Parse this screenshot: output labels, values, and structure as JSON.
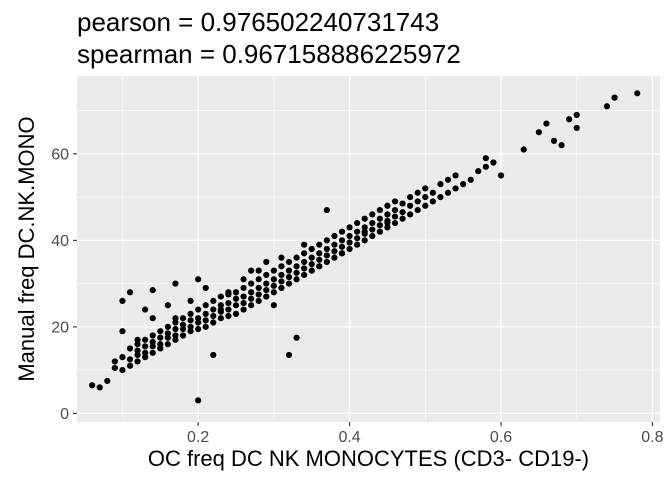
{
  "chart_data": {
    "type": "scatter",
    "title_lines": [
      "pearson = 0.976502240731743",
      " spearman = 0.967158886225972"
    ],
    "xlabel": "OC freq DC NK MONOCYTES (CD3- CD19-)",
    "ylabel": "Manual freq DC.NK.MONO",
    "xlim": [
      0.04,
      0.81
    ],
    "ylim": [
      -2,
      78
    ],
    "xticks": [
      0.2,
      0.4,
      0.6,
      0.8
    ],
    "xtick_labels": [
      "0.2",
      "0.4",
      "0.6",
      "0.8"
    ],
    "yticks": [
      0,
      20,
      40,
      60
    ],
    "ytick_labels": [
      "0",
      "20",
      "40",
      "60"
    ],
    "grid": true,
    "legend": "none",
    "panel_color": "#ebebeb",
    "gridline_color": "#ffffff",
    "point_color": "#000000",
    "x": [
      0.06,
      0.07,
      0.08,
      0.09,
      0.09,
      0.1,
      0.1,
      0.11,
      0.11,
      0.11,
      0.12,
      0.12,
      0.12,
      0.12,
      0.13,
      0.13,
      0.13,
      0.13,
      0.14,
      0.14,
      0.14,
      0.14,
      0.15,
      0.15,
      0.15,
      0.15,
      0.16,
      0.16,
      0.16,
      0.16,
      0.17,
      0.17,
      0.17,
      0.17,
      0.18,
      0.18,
      0.18,
      0.18,
      0.19,
      0.19,
      0.19,
      0.19,
      0.2,
      0.2,
      0.2,
      0.2,
      0.21,
      0.21,
      0.21,
      0.21,
      0.22,
      0.22,
      0.22,
      0.22,
      0.23,
      0.23,
      0.23,
      0.23,
      0.24,
      0.24,
      0.24,
      0.24,
      0.25,
      0.25,
      0.25,
      0.25,
      0.26,
      0.26,
      0.26,
      0.26,
      0.27,
      0.27,
      0.27,
      0.27,
      0.28,
      0.28,
      0.28,
      0.28,
      0.29,
      0.29,
      0.29,
      0.29,
      0.3,
      0.3,
      0.3,
      0.3,
      0.31,
      0.31,
      0.31,
      0.31,
      0.32,
      0.32,
      0.32,
      0.32,
      0.33,
      0.33,
      0.33,
      0.33,
      0.34,
      0.34,
      0.34,
      0.34,
      0.35,
      0.35,
      0.35,
      0.35,
      0.36,
      0.36,
      0.36,
      0.36,
      0.37,
      0.37,
      0.37,
      0.37,
      0.38,
      0.38,
      0.38,
      0.38,
      0.39,
      0.39,
      0.39,
      0.39,
      0.4,
      0.4,
      0.4,
      0.4,
      0.41,
      0.41,
      0.41,
      0.41,
      0.42,
      0.42,
      0.42,
      0.42,
      0.43,
      0.43,
      0.43,
      0.43,
      0.44,
      0.44,
      0.44,
      0.44,
      0.45,
      0.45,
      0.45,
      0.45,
      0.46,
      0.46,
      0.46,
      0.46,
      0.47,
      0.47,
      0.47,
      0.48,
      0.48,
      0.48,
      0.49,
      0.49,
      0.49,
      0.5,
      0.5,
      0.5,
      0.51,
      0.51,
      0.52,
      0.52,
      0.53,
      0.53,
      0.54,
      0.54,
      0.55,
      0.56,
      0.57,
      0.58,
      0.58,
      0.59,
      0.6,
      0.63,
      0.65,
      0.66,
      0.67,
      0.68,
      0.69,
      0.7,
      0.7,
      0.74,
      0.75,
      0.78,
      0.11,
      0.1,
      0.13,
      0.14,
      0.17,
      0.2,
      0.24,
      0.33,
      0.32,
      0.37,
      0.2,
      0.1,
      0.12,
      0.16,
      0.22,
      0.27,
      0.29,
      0.3,
      0.14,
      0.17,
      0.19,
      0.21,
      0.23,
      0.26,
      0.28,
      0.31,
      0.34,
      0.36,
      0.39,
      0.42,
      0.45
    ],
    "y": [
      6.5,
      6,
      7.5,
      10.5,
      12,
      10,
      13,
      11,
      12.5,
      15,
      12,
      13.5,
      14.5,
      16,
      13,
      14,
      15.5,
      17,
      14,
      15.5,
      16.5,
      18,
      15,
      16,
      17.5,
      19,
      16,
      17.5,
      18.5,
      20,
      17,
      18,
      19.5,
      21,
      18,
      19.5,
      20.5,
      22,
      19,
      20,
      21.5,
      23,
      19.5,
      21,
      22,
      24,
      20,
      21.5,
      23,
      25,
      21,
      22.5,
      24,
      26,
      22,
      23.5,
      25,
      27,
      22.5,
      24,
      25.5,
      27.5,
      23,
      25,
      26.5,
      28,
      24,
      25.5,
      27,
      29,
      25,
      26.5,
      28,
      30,
      26,
      27.5,
      29,
      31,
      27,
      28.5,
      30,
      32,
      28,
      29.5,
      31,
      33,
      29,
      30.5,
      32,
      34,
      30,
      31.5,
      33,
      35,
      31,
      32.5,
      34,
      36,
      32,
      33.5,
      35,
      37,
      33,
      34.5,
      36,
      38,
      34,
      35.5,
      37,
      39,
      35,
      36.5,
      38,
      40,
      36,
      37.5,
      39,
      41,
      37,
      38.5,
      40,
      42,
      38,
      39.5,
      41,
      43,
      39,
      40.5,
      42,
      44,
      40,
      41.5,
      43,
      45,
      41,
      42.5,
      44,
      46,
      42,
      43.5,
      45,
      47,
      43,
      44.5,
      46,
      48,
      44,
      45.5,
      47,
      49,
      45,
      46.5,
      48.5,
      46,
      48,
      50,
      47,
      49,
      51,
      48,
      50,
      52,
      49,
      51,
      50,
      53,
      51,
      54,
      52,
      55,
      53,
      54,
      56,
      57,
      59,
      58,
      55,
      61,
      65,
      67,
      63,
      62,
      68,
      66,
      69,
      71,
      73,
      74,
      28,
      26,
      24,
      22,
      30,
      31,
      28,
      17.5,
      13.5,
      47,
      3,
      19,
      17,
      25,
      13.5,
      33,
      35,
      25,
      28.5,
      22,
      26,
      29,
      24,
      31,
      33,
      36,
      39,
      34,
      37,
      42,
      44
    ]
  }
}
